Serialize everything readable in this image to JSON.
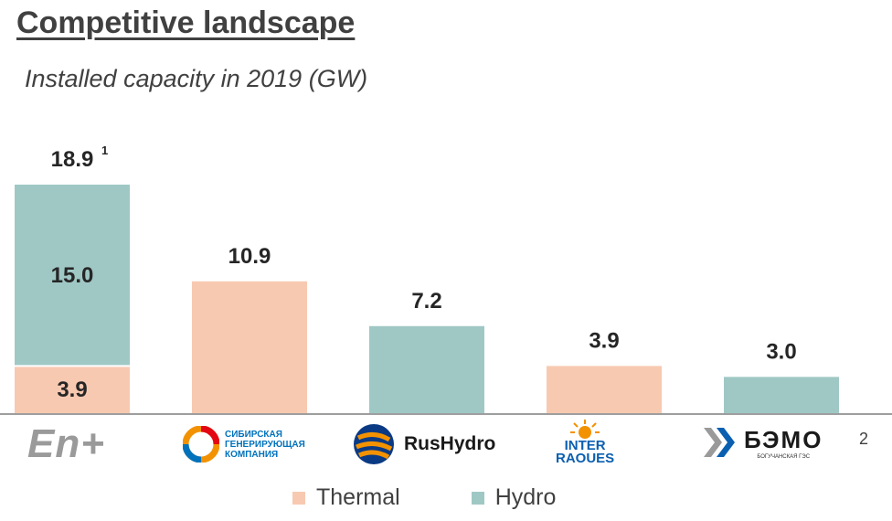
{
  "title": "Competitive landscape",
  "subtitle": "Installed capacity in 2019 (GW)",
  "page_number": "2",
  "colors": {
    "thermal": "#f8c9b1",
    "hydro": "#9fc8c5",
    "axis": "#7f7f7f"
  },
  "logos": {
    "enplus": {
      "text": "En+",
      "icon": "enplus-logo"
    },
    "sgk": {
      "lines": [
        "СИБИРСКАЯ",
        "ГЕНЕРИРУЮЩАЯ",
        "КОМПАНИЯ"
      ],
      "icon": "sgk-logo"
    },
    "rushydro": {
      "text": "RusHydro",
      "icon": "rushydro-logo"
    },
    "interrao": {
      "lines": [
        "INTER",
        "RAOUES"
      ],
      "icon": "inter-rao-sun-logo"
    },
    "bemo": {
      "text": "БЭМО",
      "caption": "БОГУЧАНСКАЯ ГЭС",
      "icon": "bemo-logo"
    }
  },
  "chart_data": {
    "type": "bar",
    "stacked": true,
    "title": "Installed capacity in 2019 (GW)",
    "categories": [
      "En+",
      "Сибирская генерирующая компания",
      "RusHydro",
      "Inter RAO UES",
      "БЭМО"
    ],
    "series": [
      {
        "name": "Thermal",
        "values": [
          3.9,
          10.9,
          0,
          3.9,
          0
        ]
      },
      {
        "name": "Hydro",
        "values": [
          15.0,
          0,
          7.2,
          0,
          3.0
        ]
      }
    ],
    "totals": [
      "18.9",
      "10.9",
      "7.2",
      "3.9",
      "3.0"
    ],
    "segment_labels": {
      "thermal": [
        "3.9",
        "",
        "",
        "",
        ""
      ],
      "hydro": [
        "15.0",
        "",
        "",
        "",
        ""
      ]
    },
    "footnote_marks": [
      "1",
      "",
      "",
      "",
      ""
    ],
    "ylim": [
      0,
      18.9
    ],
    "grid": false,
    "legend": {
      "position": "bottom",
      "entries": [
        "Thermal",
        "Hydro"
      ]
    }
  }
}
